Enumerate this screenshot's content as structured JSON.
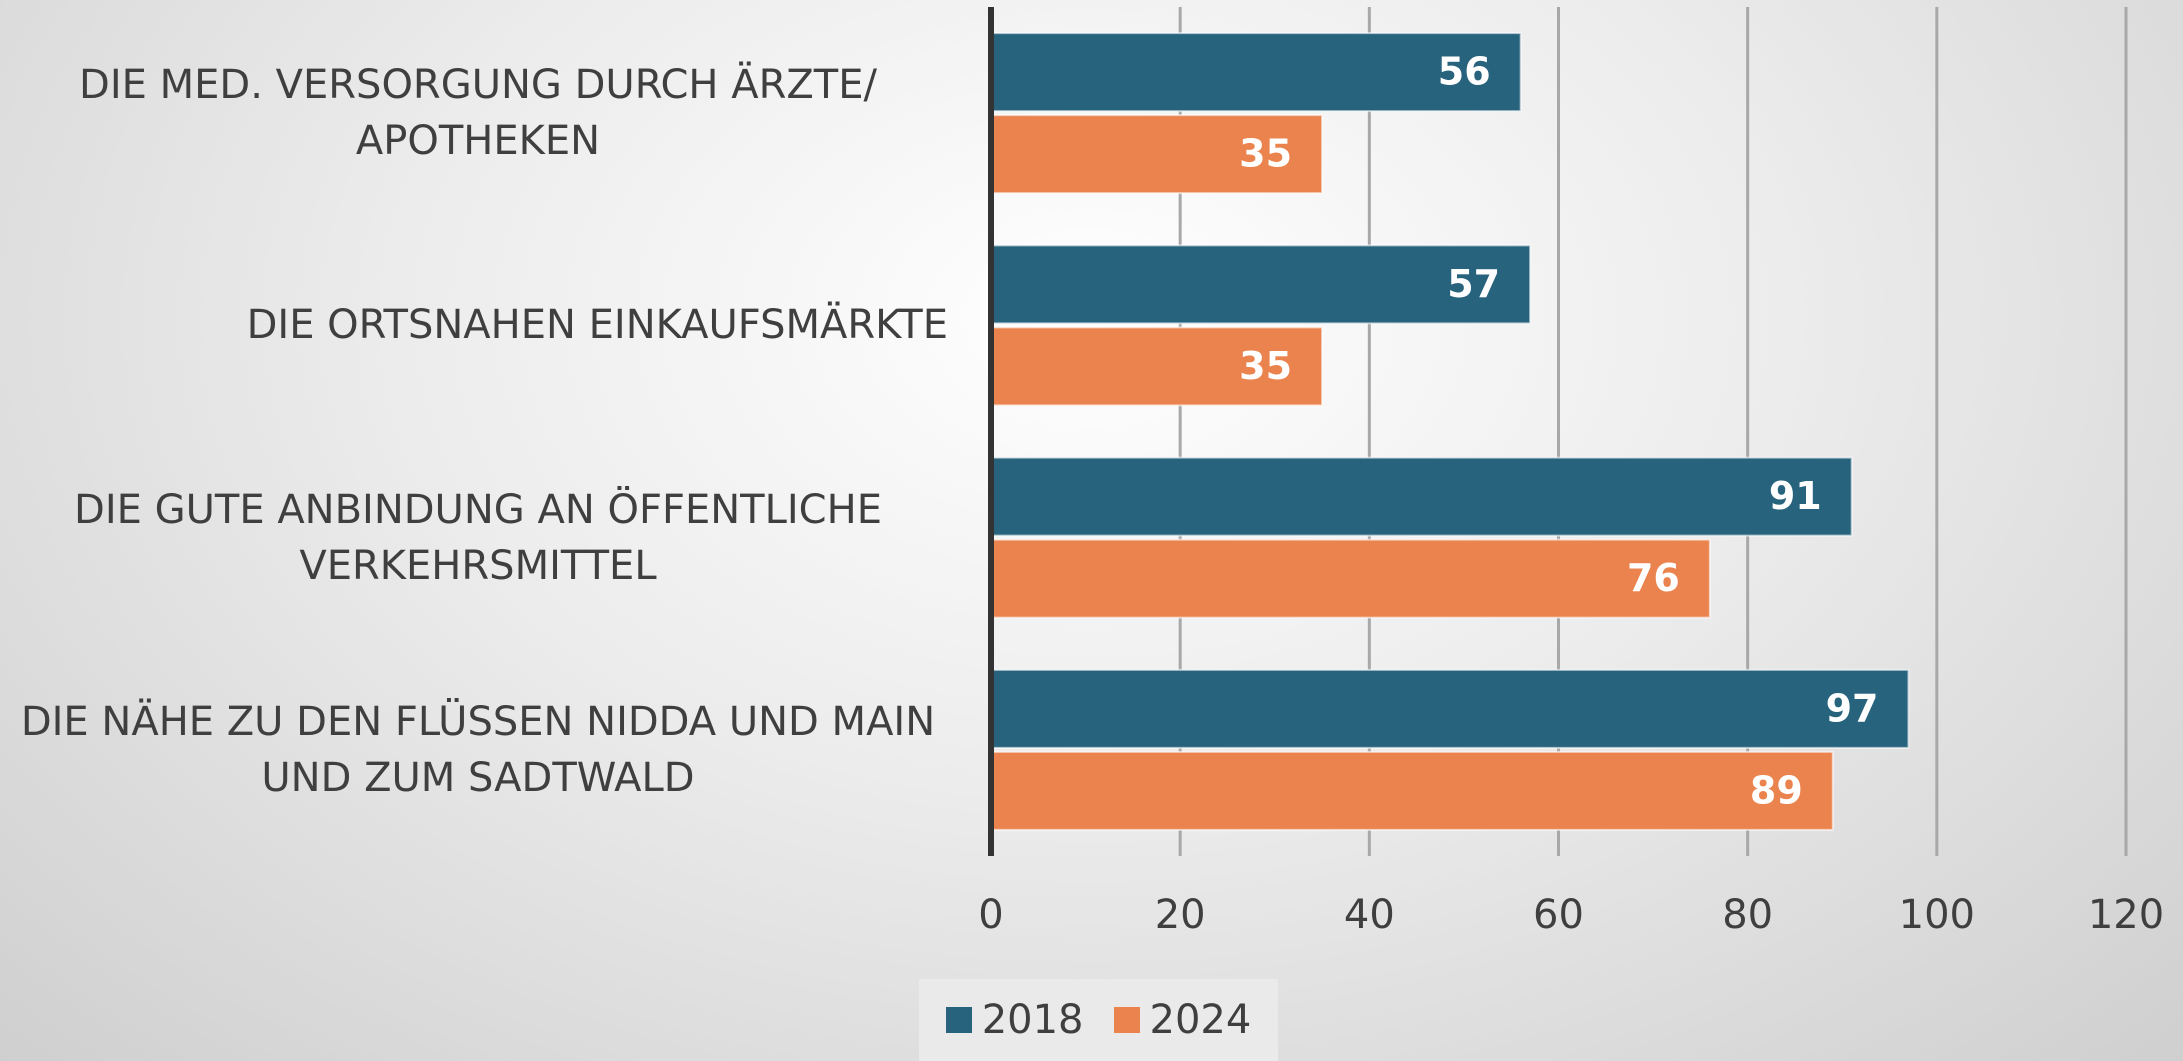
{
  "chart_data": {
    "type": "hbar",
    "categories": [
      "DIE MED. VERSORGUNG DURCH ÄRZTE/ APOTHEKEN",
      "DIE ORTSNAHEN EINKAUFSMÄRKTE",
      "DIE GUTE ANBINDUNG AN ÖFFENTLICHE VERKEHRSMITTEL",
      "DIE NÄHE ZU DEN FLÜSSEN NIDDA UND MAIN UND ZUM SADTWALD"
    ],
    "series": [
      {
        "name": "2018",
        "color": "#28637d",
        "values": [
          56,
          57,
          91,
          97
        ]
      },
      {
        "name": "2024",
        "color": "#ea834d",
        "values": [
          35,
          35,
          76,
          89
        ]
      }
    ],
    "xlim": [
      0,
      120
    ],
    "xticks": [
      0,
      20,
      40,
      60,
      80,
      100,
      120
    ],
    "grid": true,
    "legend": "bottom"
  }
}
